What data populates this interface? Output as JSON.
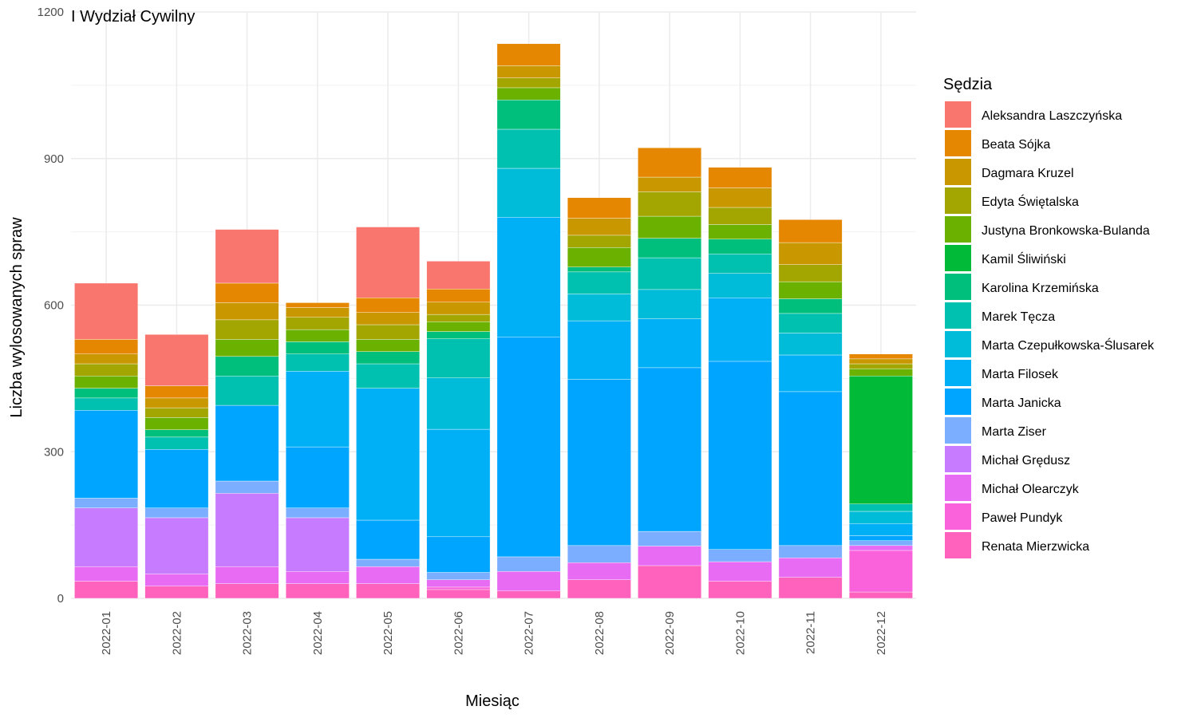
{
  "chart_data": {
    "type": "bar",
    "stacked": true,
    "title": "I Wydział Cywilny",
    "xlabel": "Miesiąc",
    "ylabel": "Liczba wylosowanych spraw",
    "ylim": [
      0,
      1200
    ],
    "yticks": [
      0,
      300,
      600,
      900,
      1200
    ],
    "grid": true,
    "legend_title": "Sędzia",
    "legend_position": "right",
    "categories": [
      "2022-01",
      "2022-02",
      "2022-03",
      "2022-04",
      "2022-05",
      "2022-06",
      "2022-07",
      "2022-08",
      "2022-09",
      "2022-10",
      "2022-11",
      "2022-12"
    ],
    "series": [
      {
        "name": "Aleksandra Laszczyńska",
        "color": "#F8766D",
        "values": [
          115,
          105,
          110,
          0,
          145,
          57,
          0,
          0,
          0,
          0,
          0,
          0
        ]
      },
      {
        "name": "Beata Sójka",
        "color": "#E58700",
        "values": [
          30,
          25,
          40,
          10,
          30,
          27,
          45,
          42,
          60,
          42,
          47,
          10
        ]
      },
      {
        "name": "Dagmara Kruzel",
        "color": "#C99800",
        "values": [
          20,
          20,
          35,
          20,
          25,
          25,
          25,
          35,
          30,
          40,
          45,
          10
        ]
      },
      {
        "name": "Edyta Świętalska",
        "color": "#A3A500",
        "values": [
          25,
          20,
          40,
          25,
          30,
          15,
          20,
          25,
          50,
          35,
          35,
          10
        ]
      },
      {
        "name": "Justyna Bronkowska-Bulanda",
        "color": "#6BB100",
        "values": [
          25,
          25,
          35,
          25,
          25,
          20,
          25,
          40,
          45,
          30,
          35,
          15
        ]
      },
      {
        "name": "Kamil Śliwiński",
        "color": "#00BA38",
        "values": [
          0,
          0,
          0,
          0,
          0,
          0,
          0,
          0,
          0,
          0,
          0,
          262
        ]
      },
      {
        "name": "Karolina Krzemińska",
        "color": "#00BF7D",
        "values": [
          20,
          15,
          40,
          25,
          25,
          15,
          60,
          10,
          40,
          30,
          30,
          0
        ]
      },
      {
        "name": "Marek Tęcza",
        "color": "#00C0AF",
        "values": [
          25,
          25,
          60,
          35,
          50,
          80,
          80,
          45,
          65,
          40,
          40,
          15
        ]
      },
      {
        "name": "Marta Czepułkowska-Ślusarek",
        "color": "#00BCD8",
        "values": [
          0,
          0,
          0,
          0,
          0,
          105,
          100,
          55,
          60,
          50,
          45,
          25
        ]
      },
      {
        "name": "Marta Filosek",
        "color": "#00B0F6",
        "values": [
          0,
          0,
          0,
          155,
          270,
          220,
          245,
          120,
          100,
          130,
          75,
          25
        ]
      },
      {
        "name": "Marta Janicka",
        "color": "#00A5FF",
        "values": [
          180,
          120,
          155,
          125,
          80,
          73,
          450,
          340,
          335,
          385,
          315,
          10
        ]
      },
      {
        "name": "Marta Ziser",
        "color": "#7CAEFF",
        "values": [
          20,
          20,
          25,
          20,
          15,
          15,
          30,
          35,
          30,
          25,
          25,
          10
        ]
      },
      {
        "name": "Michał Grędusz",
        "color": "#C77CFF",
        "values": [
          120,
          115,
          150,
          110,
          0,
          0,
          0,
          0,
          0,
          0,
          0,
          0
        ]
      },
      {
        "name": "Michał Olearczyk",
        "color": "#E76BF3",
        "values": [
          30,
          25,
          35,
          25,
          35,
          15,
          40,
          35,
          40,
          40,
          40,
          10
        ]
      },
      {
        "name": "Paweł Pundyk",
        "color": "#FA62DB",
        "values": [
          0,
          0,
          0,
          0,
          0,
          5,
          0,
          0,
          0,
          0,
          0,
          85
        ]
      },
      {
        "name": "Renata Mierzwicka",
        "color": "#FF62BC",
        "values": [
          35,
          25,
          30,
          30,
          30,
          18,
          15,
          38,
          67,
          35,
          43,
          13
        ]
      }
    ]
  }
}
